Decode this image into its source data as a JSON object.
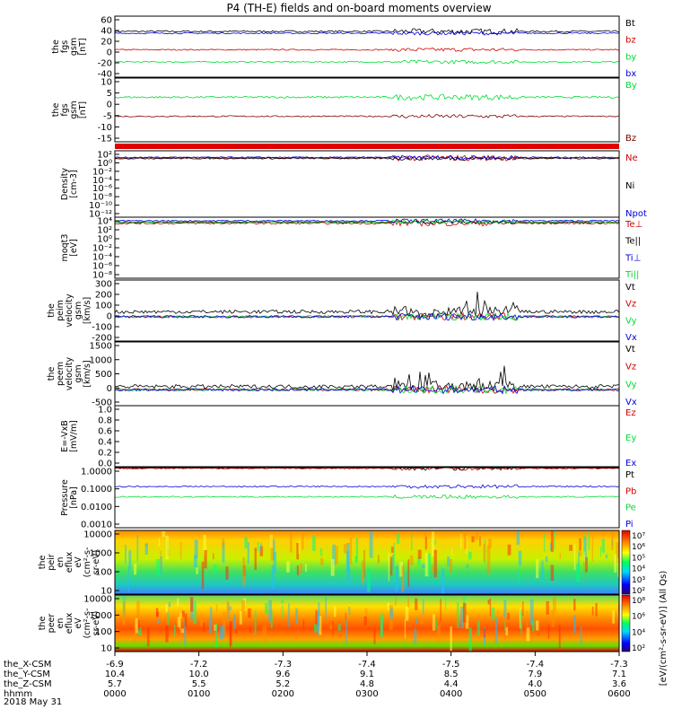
{
  "title": "P4 (TH-E) fields and on-board moments overview",
  "date_label": "2018 May 31",
  "colors": {
    "black": "#000000",
    "red": "#d00000",
    "green": "#00dd33",
    "blue": "#0000dd",
    "darkred": "#7a0000",
    "spec_bg": "#b0e0ff"
  },
  "ephemeris": {
    "rows": [
      {
        "label": "the_X-CSM",
        "values": [
          "-6.9",
          "-7.2",
          "-7.3",
          "-7.4",
          "-7.5",
          "-7.4",
          "-7.3"
        ]
      },
      {
        "label": "the_Y-CSM",
        "values": [
          "10.4",
          "10.0",
          "9.6",
          "9.1",
          "8.5",
          "7.9",
          "7.1"
        ]
      },
      {
        "label": "the_Z-CSM",
        "values": [
          "5.7",
          "5.5",
          "5.2",
          "4.8",
          "4.4",
          "4.0",
          "3.6"
        ]
      },
      {
        "label": "hhmm",
        "values": [
          "0000",
          "0100",
          "0200",
          "0300",
          "0400",
          "0500",
          "0600"
        ]
      }
    ]
  },
  "chart_data": [
    {
      "type": "line",
      "ylabel": [
        "the",
        "fgs",
        "gsm",
        "[nT]"
      ],
      "yticks": [
        "60",
        "40",
        "20",
        "0",
        "-20",
        "-40"
      ],
      "ylim": [
        -40,
        60
      ],
      "series": [
        {
          "name": "Bt",
          "color": "#000000",
          "level": 35
        },
        {
          "name": "bz",
          "color": "#d00000",
          "level": 5
        },
        {
          "name": "by",
          "color": "#00dd33",
          "level": -15
        },
        {
          "name": "bx",
          "color": "#0000dd",
          "level": 32
        }
      ]
    },
    {
      "type": "line",
      "ylabel": [
        "the",
        "fgs",
        "gsm",
        "[nT]"
      ],
      "yticks": [
        "10",
        "5",
        "0",
        "-5",
        "-10",
        "-15"
      ],
      "ylim": [
        -18,
        12
      ],
      "series": [
        {
          "name": "By",
          "color": "#00dd33",
          "level": 3
        },
        {
          "name": "Bz",
          "color": "#7a0000",
          "level": -6
        }
      ]
    },
    {
      "type": "line",
      "ylabel": [
        "Density",
        "[cm-3]"
      ],
      "yticks": [
        "10²",
        "10⁰",
        "10⁻²",
        "10⁻⁴",
        "10⁻⁶",
        "10⁻⁸",
        "10⁻¹⁰",
        "10⁻¹²"
      ],
      "ylim": [
        -12,
        2
      ],
      "log": true,
      "series": [
        {
          "name": "Ne",
          "color": "#d00000",
          "level": 0.5
        },
        {
          "name": "Ni",
          "color": "#000000",
          "level": 0.4
        },
        {
          "name": "Npot",
          "color": "#0000dd",
          "level": 0.6
        }
      ]
    },
    {
      "type": "line",
      "ylabel": [
        "moqt3",
        "[eV]"
      ],
      "yticks": [
        "10⁴",
        "10²",
        "10⁰",
        "10⁻²",
        "10⁻⁴",
        "10⁻⁶",
        "10⁻⁸"
      ],
      "ylim": [
        -8,
        4
      ],
      "log": true,
      "series": [
        {
          "name": "Te⊥",
          "color": "#d00000",
          "level": 2.8
        },
        {
          "name": "Te||",
          "color": "#000000",
          "level": 3.0
        },
        {
          "name": "Ti⊥",
          "color": "#0000dd",
          "level": 3.3
        },
        {
          "name": "Ti||",
          "color": "#00dd33",
          "level": 3.1
        }
      ]
    },
    {
      "type": "line",
      "ylabel": [
        "the",
        "peim",
        "velocity",
        "gsm",
        "[km/s]"
      ],
      "yticks": [
        "300",
        "200",
        "100",
        "0",
        "-100",
        "-200"
      ],
      "ylim": [
        -200,
        300
      ],
      "series": [
        {
          "name": "Vt",
          "color": "#000000",
          "level": 40
        },
        {
          "name": "Vz",
          "color": "#d00000",
          "level": 0
        },
        {
          "name": "Vy",
          "color": "#00dd33",
          "level": 0
        },
        {
          "name": "Vx",
          "color": "#0000dd",
          "level": 0
        }
      ]
    },
    {
      "type": "line",
      "ylabel": [
        "the",
        "peem",
        "velocity",
        "gsm",
        "[km/s]"
      ],
      "yticks": [
        "1500",
        "1000",
        "500",
        "0",
        "-500"
      ],
      "ylim": [
        -500,
        1500
      ],
      "series": [
        {
          "name": "Vt",
          "color": "#000000",
          "level": 100
        },
        {
          "name": "Vz",
          "color": "#d00000",
          "level": 0
        },
        {
          "name": "Vy",
          "color": "#00dd33",
          "level": 0
        },
        {
          "name": "Vx",
          "color": "#0000dd",
          "level": 0
        }
      ]
    },
    {
      "type": "line",
      "ylabel": [
        "E=-VxB",
        "[mV/m]"
      ],
      "yticks": [
        "1.0",
        "0.8",
        "0.6",
        "0.4",
        "0.2",
        "0.0"
      ],
      "ylim": [
        0,
        1
      ],
      "series": [
        {
          "name": "Ez",
          "color": "#d00000"
        },
        {
          "name": "Ey",
          "color": "#00dd33"
        },
        {
          "name": "Ex",
          "color": "#0000dd"
        }
      ]
    },
    {
      "type": "line",
      "ylabel": [
        "Pressure",
        "[nPa]"
      ],
      "yticks": [
        "1.0000",
        "0.1000",
        "0.0100",
        "0.0010"
      ],
      "ylim": [
        -3.5,
        0
      ],
      "log": true,
      "series": [
        {
          "name": "Pt",
          "color": "#000000",
          "level": 0
        },
        {
          "name": "Pb",
          "color": "#d00000",
          "level": -0.05
        },
        {
          "name": "Pe",
          "color": "#00dd33",
          "level": -1.7
        },
        {
          "name": "Pi",
          "color": "#0000dd",
          "level": -1.1
        }
      ]
    },
    {
      "type": "heatmap",
      "ylabel": [
        "the",
        "peir",
        "en",
        "eflux",
        "eV",
        "(cm²-s-",
        "sr-eV)"
      ],
      "yticks": [
        "10000",
        "1000",
        "100",
        "10"
      ],
      "colorbar": {
        "labels": [
          "10⁷",
          "10⁶",
          "10⁵",
          "10⁴",
          "10³",
          "10²"
        ]
      }
    },
    {
      "type": "heatmap",
      "ylabel": [
        "the",
        "peer",
        "en",
        "eflux",
        "eV",
        "(cm²-s-",
        "sr-eV)"
      ],
      "yticks": [
        "10000",
        "1000",
        "100",
        "10"
      ],
      "colorbar": {
        "labels": [
          "10⁸",
          "10⁶",
          "10⁴",
          "10²"
        ]
      }
    }
  ],
  "colorbar_label": "[eV/(cm²-s-sr-eV)] (All Qs)"
}
